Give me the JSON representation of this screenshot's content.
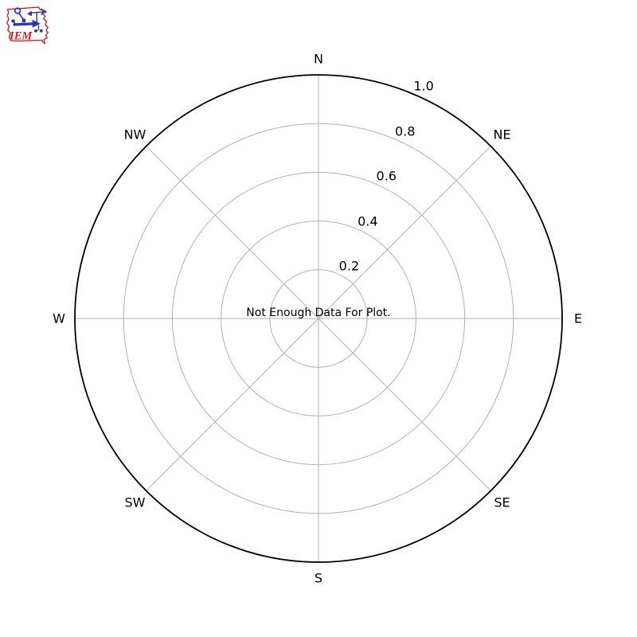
{
  "logo": {
    "text": "IEM",
    "outline_color": "#c3242c",
    "instrument_color": "#2d35b5",
    "text_color": "#c3242c"
  },
  "chart_data": {
    "type": "polar",
    "title": "",
    "message": "Not Enough Data For Plot.",
    "compass_labels": [
      "N",
      "NE",
      "E",
      "SE",
      "S",
      "SW",
      "W",
      "NW"
    ],
    "r_ticks": [
      0.2,
      0.4,
      0.6,
      0.8,
      1.0
    ],
    "r_tick_labels": [
      "0.2",
      "0.4",
      "0.6",
      "0.8",
      "1.0"
    ],
    "r_max": 1.0,
    "r_label_angle_deg": 22.5,
    "series": [],
    "grid": true,
    "grid_color": "#b0b0b0",
    "outer_ring_color": "#000000",
    "label_color": "#000000",
    "background_color": "#ffffff"
  }
}
